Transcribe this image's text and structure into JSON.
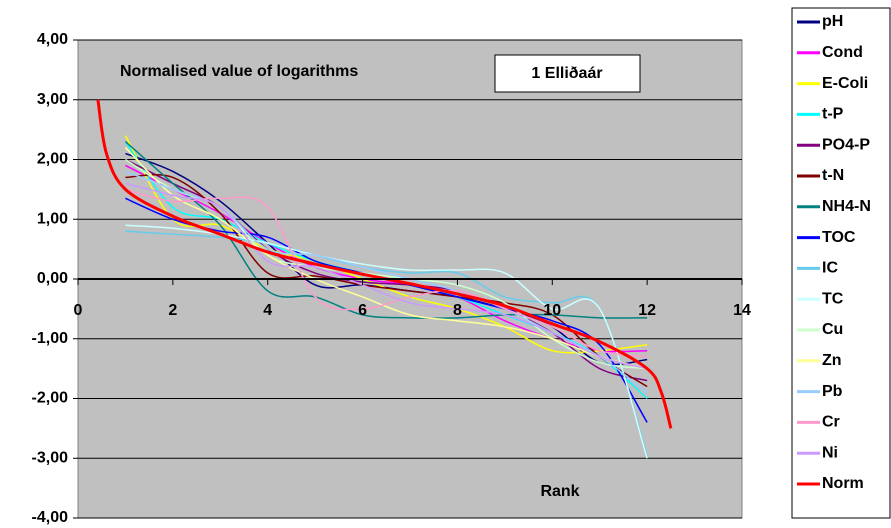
{
  "chart_data": {
    "type": "line",
    "annotations": [
      "Normalised value of logarithms",
      "1  Elliðaár"
    ],
    "xlabel": "Rank",
    "x": [
      1,
      2,
      3,
      4,
      5,
      6,
      7,
      8,
      9,
      10,
      11,
      12
    ],
    "xlim": [
      0,
      14
    ],
    "xticks": [
      0,
      2,
      4,
      6,
      8,
      10,
      12,
      14
    ],
    "ylim": [
      -4,
      4
    ],
    "yticks": [
      {
        "value": -4,
        "label": "-4,00"
      },
      {
        "value": -3,
        "label": "-3,00"
      },
      {
        "value": -2,
        "label": "-2,00"
      },
      {
        "value": -1,
        "label": "-1,00"
      },
      {
        "value": 0,
        "label": "0,00"
      },
      {
        "value": 1,
        "label": "1,00"
      },
      {
        "value": 2,
        "label": "2,00"
      },
      {
        "value": 3,
        "label": "3,00"
      },
      {
        "value": 4,
        "label": "4,00"
      }
    ],
    "grid": true,
    "legend": "right",
    "series": [
      {
        "name": "pH",
        "color": "#000080",
        "values": [
          2.1,
          1.8,
          1.3,
          0.6,
          -0.1,
          -0.1,
          -0.2,
          -0.3,
          -0.5,
          -0.8,
          -1.4,
          -1.35
        ]
      },
      {
        "name": "Cond",
        "color": "#ff00ff",
        "values": [
          1.9,
          1.5,
          1.1,
          0.6,
          0.2,
          0.0,
          -0.1,
          -0.3,
          -0.7,
          -1.0,
          -1.2,
          -1.2
        ]
      },
      {
        "name": "E-Coli",
        "color": "#ffff00",
        "values": [
          2.4,
          1.0,
          0.9,
          0.5,
          0.3,
          0.0,
          -0.3,
          -0.5,
          -0.8,
          -1.2,
          -1.2,
          -1.1
        ]
      },
      {
        "name": "t-P",
        "color": "#00ffff",
        "values": [
          2.3,
          1.2,
          1.0,
          0.6,
          0.3,
          0.1,
          -0.1,
          -0.3,
          -0.6,
          -0.9,
          -1.3,
          -2.0
        ]
      },
      {
        "name": "PO4-P",
        "color": "#800080",
        "values": [
          2.0,
          1.6,
          1.2,
          0.5,
          0.1,
          -0.05,
          -0.1,
          -0.2,
          -0.5,
          -0.9,
          -1.5,
          -1.7
        ]
      },
      {
        "name": "t-N",
        "color": "#800000",
        "values": [
          1.7,
          1.7,
          1.1,
          0.1,
          0.05,
          -0.1,
          -0.2,
          -0.3,
          -0.4,
          -0.6,
          -1.3,
          -1.8
        ]
      },
      {
        "name": "NH4-N",
        "color": "#008080",
        "values": [
          2.3,
          1.6,
          0.9,
          -0.2,
          -0.3,
          -0.6,
          -0.65,
          -0.65,
          -0.6,
          -0.6,
          -0.65,
          -0.65
        ]
      },
      {
        "name": "TOC",
        "color": "#0000ff",
        "values": [
          1.35,
          1.0,
          0.8,
          0.7,
          0.3,
          0.1,
          -0.1,
          -0.3,
          -0.5,
          -0.7,
          -1.1,
          -2.4
        ]
      },
      {
        "name": "IC",
        "color": "#66ccee",
        "values": [
          0.8,
          0.75,
          0.7,
          0.6,
          0.4,
          0.2,
          0.1,
          0.1,
          -0.3,
          -0.4,
          -0.5,
          -2.95
        ]
      },
      {
        "name": "TC",
        "color": "#ccffff",
        "values": [
          0.9,
          0.85,
          0.75,
          0.6,
          0.4,
          0.25,
          0.15,
          0.15,
          0.1,
          -0.5,
          -0.5,
          -3.0
        ]
      },
      {
        "name": "Cu",
        "color": "#ccffcc",
        "values": [
          2.0,
          1.5,
          1.2,
          0.4,
          0.2,
          0.1,
          0.0,
          -0.1,
          -0.4,
          -1.0,
          -1.4,
          -1.5
        ]
      },
      {
        "name": "Zn",
        "color": "#ffff99",
        "values": [
          2.2,
          1.4,
          1.0,
          0.4,
          0.0,
          -0.3,
          -0.6,
          -0.7,
          -0.8,
          -1.0,
          -1.3,
          -1.5
        ]
      },
      {
        "name": "Pb",
        "color": "#99ccff",
        "values": [
          1.8,
          1.5,
          1.2,
          0.5,
          0.4,
          0.2,
          0.0,
          -0.2,
          -0.5,
          -0.9,
          -1.3,
          -1.9
        ]
      },
      {
        "name": "Cr",
        "color": "#ff99cc",
        "values": [
          1.5,
          1.3,
          1.35,
          1.2,
          -0.3,
          -0.5,
          -0.3,
          -0.2,
          -0.5,
          -0.8,
          -1.2,
          -1.3
        ]
      },
      {
        "name": "Ni",
        "color": "#cc99ff",
        "values": [
          1.6,
          1.4,
          1.2,
          0.3,
          0.2,
          -0.1,
          -0.4,
          -0.5,
          -0.6,
          -0.9,
          -1.3,
          -1.5
        ]
      },
      {
        "name": "Norm",
        "color": "#ff0000",
        "width": 3,
        "x": [
          0.42,
          0.6,
          1,
          2,
          3,
          4,
          5,
          6,
          7,
          8,
          9,
          10,
          11,
          12,
          12.3,
          12.5
        ],
        "values": [
          3.0,
          2.1,
          1.5,
          1.05,
          0.75,
          0.45,
          0.25,
          0.08,
          -0.08,
          -0.25,
          -0.45,
          -0.75,
          -1.05,
          -1.5,
          -1.9,
          -2.5
        ]
      }
    ]
  }
}
